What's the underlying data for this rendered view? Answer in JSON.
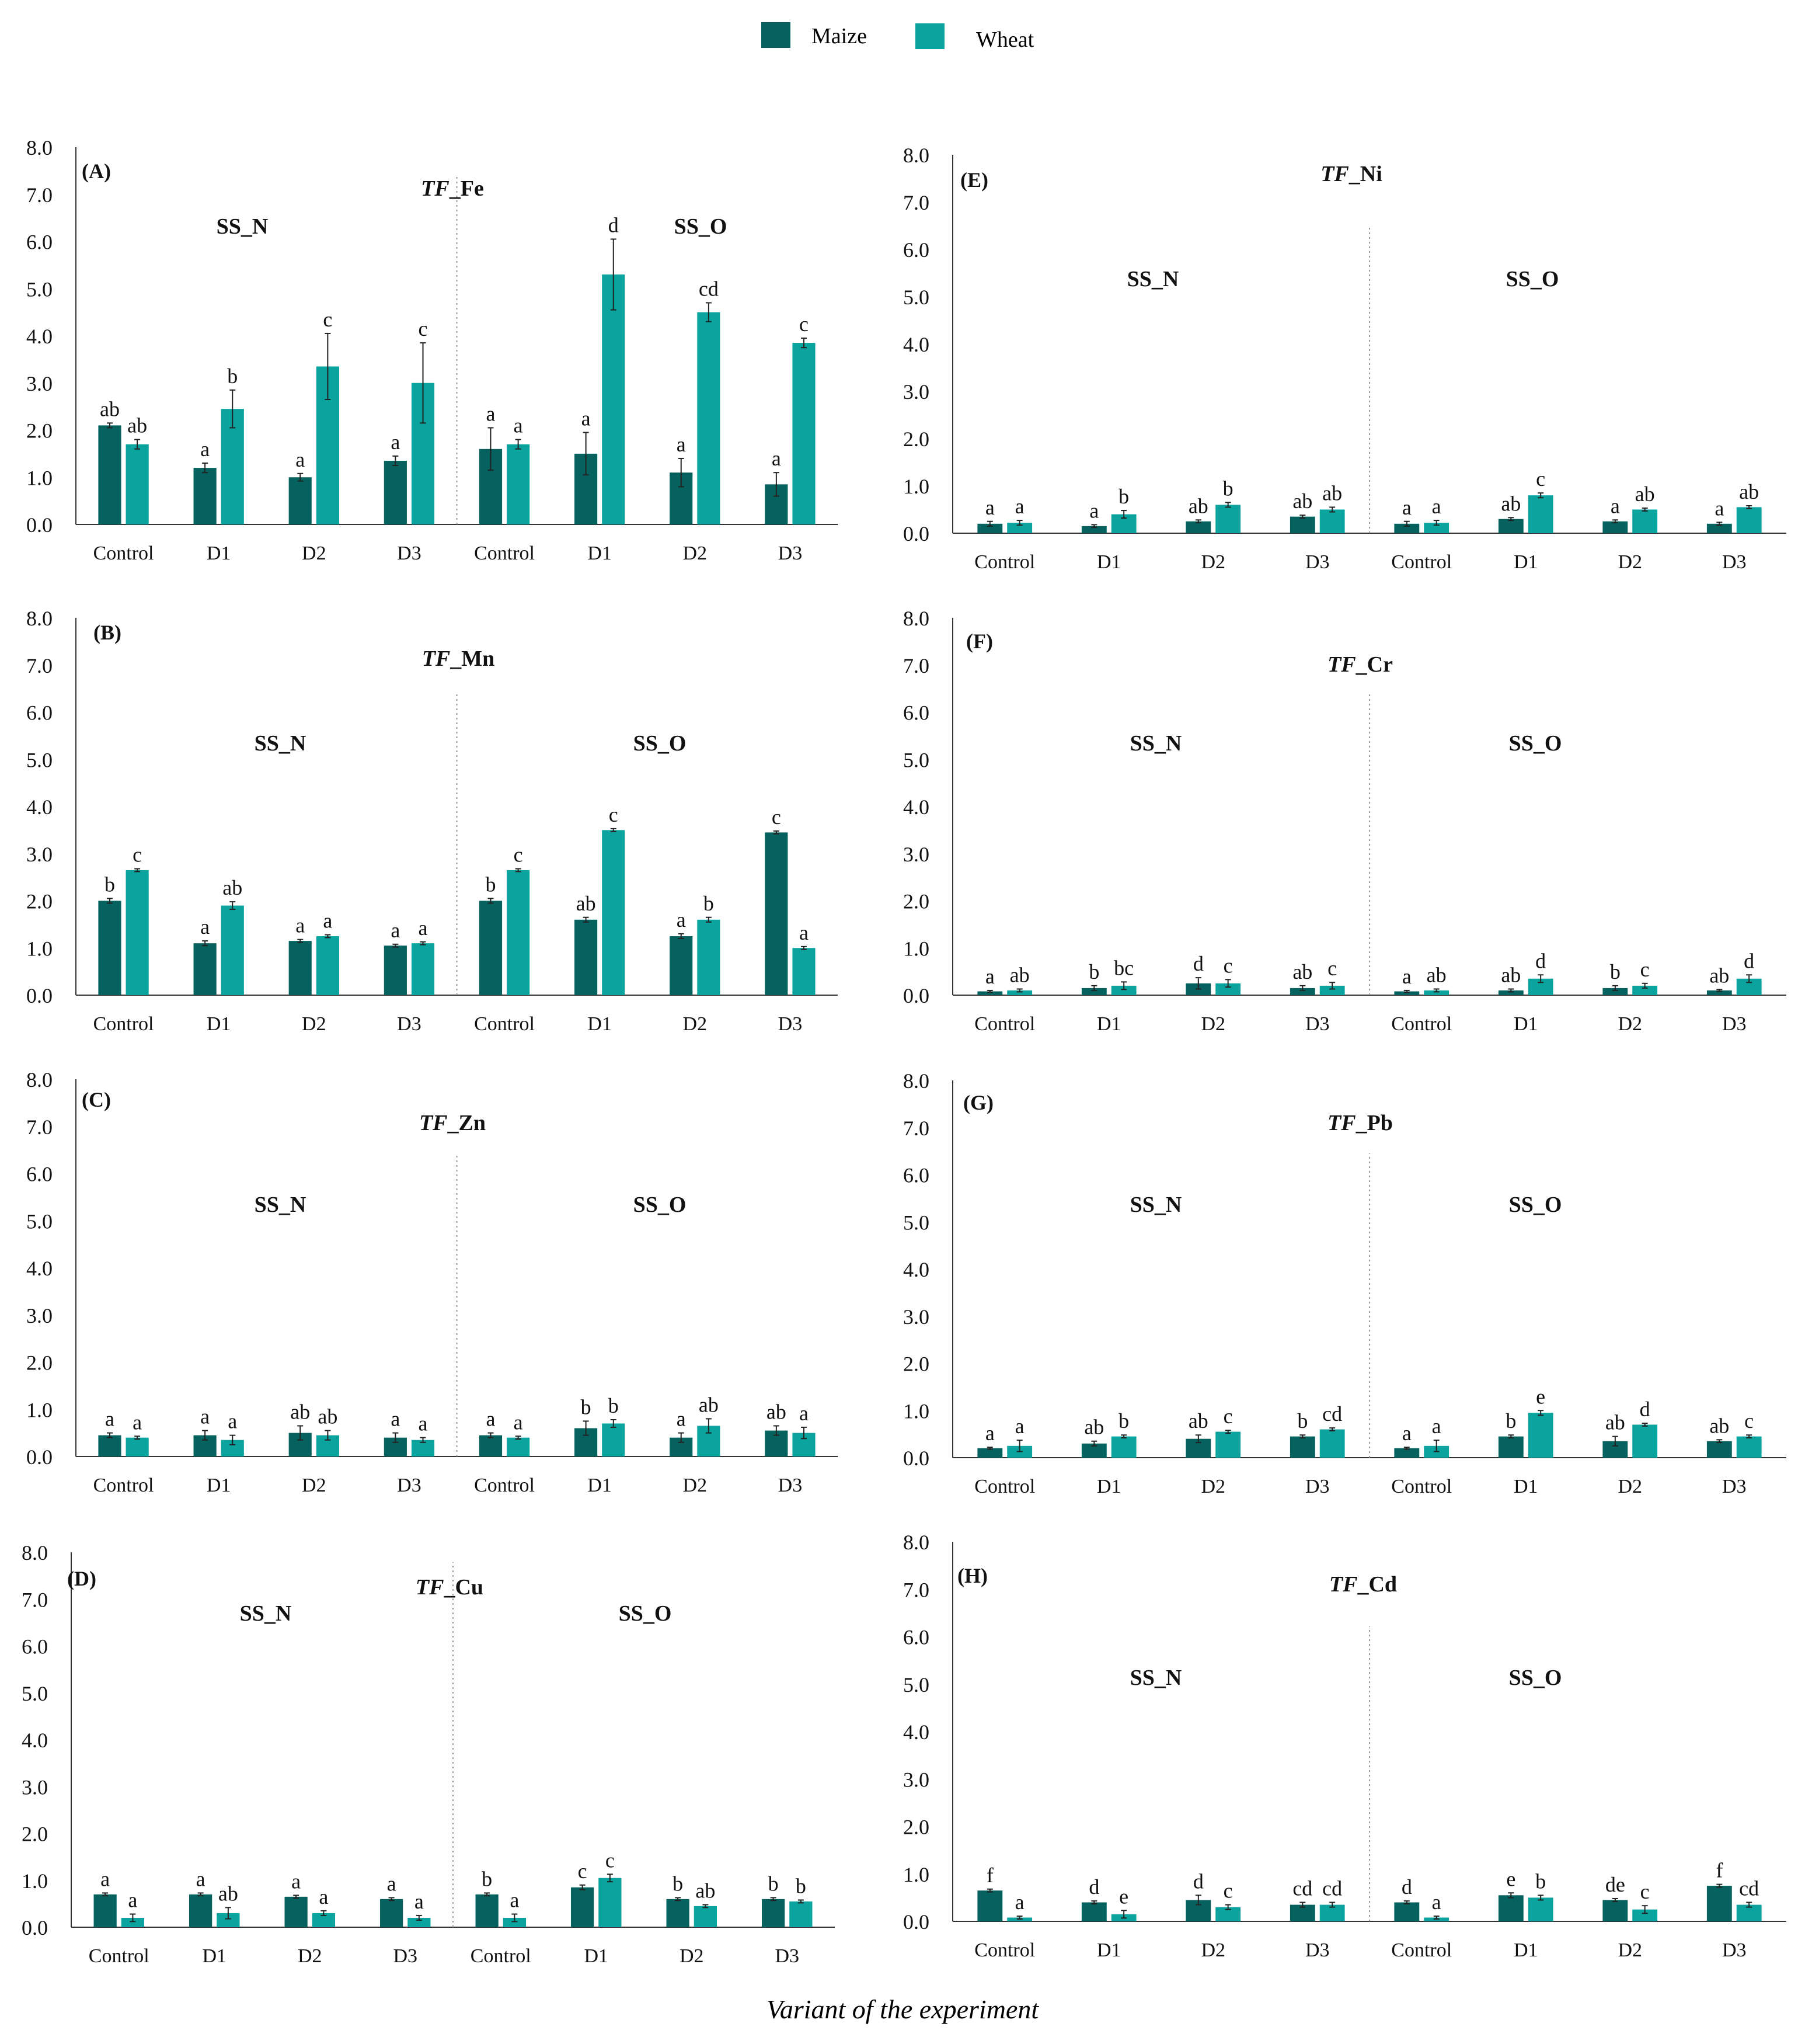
{
  "legend": [
    {
      "name": "Maize",
      "color": "#05625F"
    },
    {
      "name": "Wheat",
      "color": "#0AA39E"
    }
  ],
  "xlabel": "Variant of the experiment",
  "chart_data": [
    {
      "id": "A",
      "panel_label": "(A)",
      "title_italic": "TF",
      "title_rest": "_Fe",
      "type": "bar",
      "group_labels": [
        "SS_N",
        "SS_O"
      ],
      "categories": [
        "Control",
        "D1",
        "D2",
        "D3",
        "Control",
        "D1",
        "D2",
        "D3"
      ],
      "ylim": [
        0,
        8
      ],
      "yticks": [
        "0.0",
        "1.0",
        "2.0",
        "3.0",
        "4.0",
        "5.0",
        "6.0",
        "7.0",
        "8.0"
      ],
      "series": [
        {
          "name": "Maize",
          "values": [
            2.1,
            1.2,
            1.0,
            1.35,
            1.6,
            1.5,
            1.1,
            0.85
          ],
          "errors": [
            0.05,
            0.1,
            0.08,
            0.1,
            0.45,
            0.45,
            0.3,
            0.25
          ],
          "labels": [
            "ab",
            "a",
            "a",
            "a",
            "a",
            "a",
            "a",
            "a"
          ]
        },
        {
          "name": "Wheat",
          "values": [
            1.7,
            2.45,
            3.35,
            3.0,
            1.7,
            5.3,
            4.5,
            3.85
          ],
          "errors": [
            0.1,
            0.4,
            0.7,
            0.85,
            0.1,
            0.75,
            0.2,
            0.1
          ],
          "labels": [
            "ab",
            "b",
            "c",
            "c",
            "a",
            "d",
            "cd",
            "c"
          ]
        }
      ]
    },
    {
      "id": "B",
      "panel_label": "(B)",
      "title_italic": "TF",
      "title_rest": "_Mn",
      "type": "bar",
      "group_labels": [
        "SS_N",
        "SS_O"
      ],
      "categories": [
        "Control",
        "D1",
        "D2",
        "D3",
        "Control",
        "D1",
        "D2",
        "D3"
      ],
      "ylim": [
        0,
        8
      ],
      "yticks": [
        "0.0",
        "1.0",
        "2.0",
        "3.0",
        "4.0",
        "5.0",
        "6.0",
        "7.0",
        "8.0"
      ],
      "series": [
        {
          "name": "Maize",
          "values": [
            2.0,
            1.1,
            1.15,
            1.05,
            2.0,
            1.6,
            1.25,
            3.45
          ],
          "errors": [
            0.05,
            0.05,
            0.03,
            0.03,
            0.05,
            0.05,
            0.05,
            0.03
          ],
          "labels": [
            "b",
            "a",
            "a",
            "a",
            "b",
            "ab",
            "a",
            "c"
          ]
        },
        {
          "name": "Wheat",
          "values": [
            2.65,
            1.9,
            1.25,
            1.1,
            2.65,
            3.5,
            1.6,
            1.0
          ],
          "errors": [
            0.03,
            0.08,
            0.03,
            0.03,
            0.03,
            0.03,
            0.05,
            0.03
          ],
          "labels": [
            "c",
            "ab",
            "a",
            "a",
            "c",
            "c",
            "b",
            "a"
          ]
        }
      ]
    },
    {
      "id": "C",
      "panel_label": "(C)",
      "title_italic": "TF",
      "title_rest": "_Zn",
      "type": "bar",
      "group_labels": [
        "SS_N",
        "SS_O"
      ],
      "categories": [
        "Control",
        "D1",
        "D2",
        "D3",
        "Control",
        "D1",
        "D2",
        "D3"
      ],
      "ylim": [
        0,
        8
      ],
      "yticks": [
        "0.0",
        "1.0",
        "2.0",
        "3.0",
        "4.0",
        "5.0",
        "6.0",
        "7.0",
        "8.0"
      ],
      "series": [
        {
          "name": "Maize",
          "values": [
            0.45,
            0.45,
            0.5,
            0.4,
            0.45,
            0.6,
            0.4,
            0.55
          ],
          "errors": [
            0.05,
            0.1,
            0.15,
            0.1,
            0.05,
            0.15,
            0.1,
            0.1
          ],
          "labels": [
            "a",
            "a",
            "ab",
            "a",
            "a",
            "b",
            "a",
            "ab"
          ]
        },
        {
          "name": "Wheat",
          "values": [
            0.4,
            0.35,
            0.45,
            0.35,
            0.4,
            0.7,
            0.65,
            0.5
          ],
          "errors": [
            0.03,
            0.1,
            0.1,
            0.05,
            0.03,
            0.08,
            0.15,
            0.12
          ],
          "labels": [
            "a",
            "a",
            "ab",
            "a",
            "a",
            "b",
            "ab",
            "a"
          ]
        }
      ]
    },
    {
      "id": "D",
      "panel_label": "(D)",
      "title_italic": "TF",
      "title_rest": "_Cu",
      "type": "bar",
      "group_labels": [
        "SS_N",
        "SS_O"
      ],
      "categories": [
        "Control",
        "D1",
        "D2",
        "D3",
        "Control",
        "D1",
        "D2",
        "D3"
      ],
      "ylim": [
        0,
        8
      ],
      "yticks": [
        "0.0",
        "1.0",
        "2.0",
        "3.0",
        "4.0",
        "5.0",
        "6.0",
        "7.0",
        "8.0"
      ],
      "series": [
        {
          "name": "Maize",
          "values": [
            0.7,
            0.7,
            0.65,
            0.6,
            0.7,
            0.85,
            0.6,
            0.6
          ],
          "errors": [
            0.03,
            0.03,
            0.03,
            0.03,
            0.03,
            0.05,
            0.03,
            0.03
          ],
          "labels": [
            "a",
            "a",
            "a",
            "a",
            "b",
            "c",
            "b",
            "b"
          ]
        },
        {
          "name": "Wheat",
          "values": [
            0.2,
            0.3,
            0.3,
            0.2,
            0.2,
            1.05,
            0.45,
            0.55
          ],
          "errors": [
            0.08,
            0.12,
            0.05,
            0.05,
            0.08,
            0.08,
            0.03,
            0.03
          ],
          "labels": [
            "a",
            "ab",
            "a",
            "a",
            "a",
            "c",
            "ab",
            "b"
          ]
        }
      ]
    },
    {
      "id": "E",
      "panel_label": "(E)",
      "title_italic": "TF",
      "title_rest": "_Ni",
      "type": "bar",
      "group_labels": [
        "SS_N",
        "SS_O"
      ],
      "categories": [
        "Control",
        "D1",
        "D2",
        "D3",
        "Control",
        "D1",
        "D2",
        "D3"
      ],
      "ylim": [
        0,
        8
      ],
      "yticks": [
        "0.0",
        "1.0",
        "2.0",
        "3.0",
        "4.0",
        "5.0",
        "6.0",
        "7.0",
        "8.0"
      ],
      "series": [
        {
          "name": "Maize",
          "values": [
            0.2,
            0.15,
            0.25,
            0.35,
            0.2,
            0.3,
            0.25,
            0.2
          ],
          "errors": [
            0.05,
            0.03,
            0.03,
            0.03,
            0.05,
            0.03,
            0.03,
            0.03
          ],
          "labels": [
            "a",
            "a",
            "ab",
            "ab",
            "a",
            "ab",
            "a",
            "a"
          ]
        },
        {
          "name": "Wheat",
          "values": [
            0.22,
            0.4,
            0.6,
            0.5,
            0.22,
            0.8,
            0.5,
            0.55
          ],
          "errors": [
            0.05,
            0.08,
            0.05,
            0.05,
            0.05,
            0.05,
            0.03,
            0.03
          ],
          "labels": [
            "a",
            "b",
            "b",
            "ab",
            "a",
            "c",
            "ab",
            "ab"
          ]
        }
      ]
    },
    {
      "id": "F",
      "panel_label": "(F)",
      "title_italic": "TF",
      "title_rest": "_Cr",
      "type": "bar",
      "group_labels": [
        "SS_N",
        "SS_O"
      ],
      "categories": [
        "Control",
        "D1",
        "D2",
        "D3",
        "Control",
        "D1",
        "D2",
        "D3"
      ],
      "ylim": [
        0,
        8
      ],
      "yticks": [
        "0.0",
        "1.0",
        "2.0",
        "3.0",
        "4.0",
        "5.0",
        "6.0",
        "7.0",
        "8.0"
      ],
      "series": [
        {
          "name": "Maize",
          "values": [
            0.08,
            0.15,
            0.25,
            0.15,
            0.08,
            0.1,
            0.15,
            0.1
          ],
          "errors": [
            0.02,
            0.05,
            0.12,
            0.05,
            0.02,
            0.03,
            0.05,
            0.02
          ],
          "labels": [
            "a",
            "b",
            "d",
            "ab",
            "a",
            "ab",
            "b",
            "ab"
          ]
        },
        {
          "name": "Wheat",
          "values": [
            0.1,
            0.2,
            0.25,
            0.2,
            0.1,
            0.35,
            0.2,
            0.35
          ],
          "errors": [
            0.03,
            0.08,
            0.08,
            0.07,
            0.03,
            0.08,
            0.05,
            0.08
          ],
          "labels": [
            "ab",
            "bc",
            "c",
            "c",
            "ab",
            "d",
            "c",
            "d"
          ]
        }
      ]
    },
    {
      "id": "G",
      "panel_label": "(G)",
      "title_italic": "TF",
      "title_rest": "_Pb",
      "type": "bar",
      "group_labels": [
        "SS_N",
        "SS_O"
      ],
      "categories": [
        "Control",
        "D1",
        "D2",
        "D3",
        "Control",
        "D1",
        "D2",
        "D3"
      ],
      "ylim": [
        0,
        8
      ],
      "yticks": [
        "0.0",
        "1.0",
        "2.0",
        "3.0",
        "4.0",
        "5.0",
        "6.0",
        "7.0",
        "8.0"
      ],
      "series": [
        {
          "name": "Maize",
          "values": [
            0.2,
            0.3,
            0.4,
            0.45,
            0.2,
            0.45,
            0.35,
            0.35
          ],
          "errors": [
            0.02,
            0.05,
            0.08,
            0.03,
            0.02,
            0.03,
            0.1,
            0.03
          ],
          "labels": [
            "a",
            "ab",
            "ab",
            "b",
            "a",
            "b",
            "ab",
            "ab"
          ]
        },
        {
          "name": "Wheat",
          "values": [
            0.25,
            0.45,
            0.55,
            0.6,
            0.25,
            0.95,
            0.7,
            0.45
          ],
          "errors": [
            0.12,
            0.03,
            0.03,
            0.03,
            0.12,
            0.05,
            0.03,
            0.03
          ],
          "labels": [
            "a",
            "b",
            "c",
            "cd",
            "a",
            "e",
            "d",
            "c"
          ]
        }
      ]
    },
    {
      "id": "H",
      "panel_label": "(H)",
      "title_italic": "TF",
      "title_rest": "_Cd",
      "type": "bar",
      "group_labels": [
        "SS_N",
        "SS_O"
      ],
      "categories": [
        "Control",
        "D1",
        "D2",
        "D3",
        "Control",
        "D1",
        "D2",
        "D3"
      ],
      "ylim": [
        0,
        8
      ],
      "yticks": [
        "0.0",
        "1.0",
        "2.0",
        "3.0",
        "4.0",
        "5.0",
        "6.0",
        "7.0",
        "8.0"
      ],
      "series": [
        {
          "name": "Maize",
          "values": [
            0.65,
            0.4,
            0.45,
            0.35,
            0.4,
            0.55,
            0.45,
            0.75
          ],
          "errors": [
            0.03,
            0.03,
            0.1,
            0.05,
            0.03,
            0.05,
            0.03,
            0.03
          ],
          "labels": [
            "f",
            "d",
            "d",
            "cd",
            "d",
            "e",
            "de",
            "f"
          ]
        },
        {
          "name": "Wheat",
          "values": [
            0.08,
            0.15,
            0.3,
            0.35,
            0.08,
            0.5,
            0.25,
            0.35
          ],
          "errors": [
            0.03,
            0.08,
            0.05,
            0.05,
            0.03,
            0.05,
            0.08,
            0.05
          ],
          "labels": [
            "a",
            "e",
            "c",
            "cd",
            "a",
            "b",
            "c",
            "cd"
          ]
        }
      ]
    }
  ]
}
